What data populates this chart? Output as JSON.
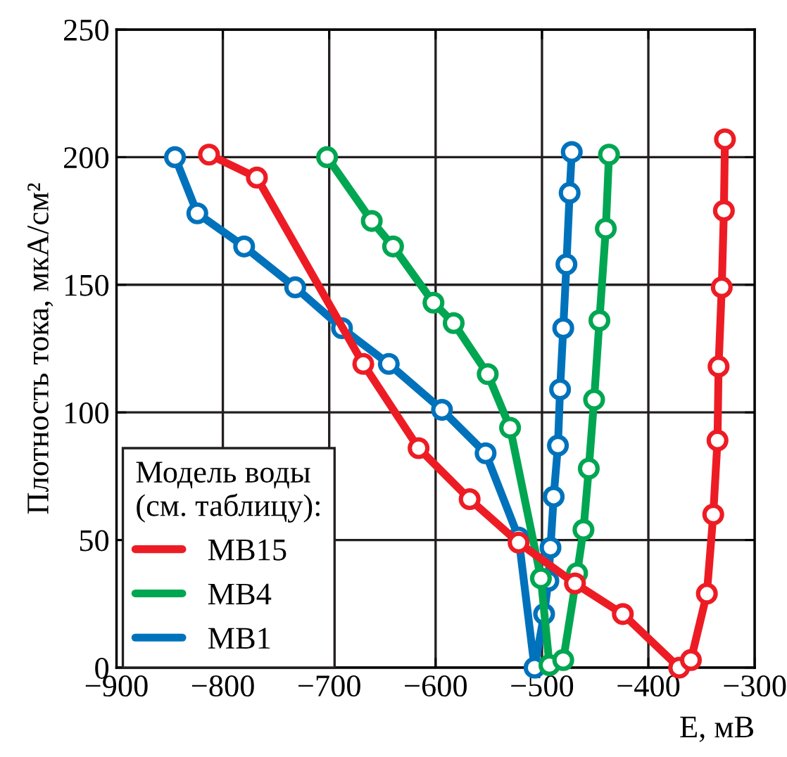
{
  "chart_data": {
    "type": "line",
    "xlabel": "E, мВ",
    "ylabel": "Плотность тока, мкА/см²",
    "legend_title": "Модель воды\n(см. таблицу):",
    "xlim": [
      -900,
      -300
    ],
    "xticks": [
      {
        "value": -900,
        "label": "−900"
      },
      {
        "value": -800,
        "label": "−800"
      },
      {
        "value": -700,
        "label": "−700"
      },
      {
        "value": -600,
        "label": "−600"
      },
      {
        "value": -500,
        "label": "−500"
      },
      {
        "value": -400,
        "label": "−400"
      },
      {
        "value": -300,
        "label": "−300"
      }
    ],
    "ylim": [
      0,
      250
    ],
    "yticks": [
      0,
      50,
      100,
      150,
      200,
      250
    ],
    "grid": true,
    "legend": "bottom left",
    "marker": "circle",
    "line_style": "solid",
    "series": [
      {
        "name": "MB15",
        "color": "#ed1c24",
        "x": [
          -813,
          -768,
          -668,
          -616,
          -568,
          -522,
          -469,
          -424,
          -371,
          -360,
          -345,
          -339,
          -335,
          -334,
          -331,
          -329,
          -328
        ],
        "values": [
          201,
          192,
          119,
          86,
          66,
          49,
          33,
          21,
          0,
          3,
          29,
          60,
          89,
          118,
          149,
          179,
          207
        ]
      },
      {
        "name": "MB4",
        "color": "#00a651",
        "x": [
          -702,
          -660,
          -640,
          -602,
          -583,
          -551,
          -530,
          -501,
          -493,
          -480,
          -467,
          -461,
          -456,
          -451,
          -446,
          -440,
          -437
        ],
        "values": [
          200,
          175,
          165,
          143,
          135,
          115,
          94,
          35,
          1,
          3,
          37,
          54,
          78,
          105,
          136,
          172,
          201
        ]
      },
      {
        "name": "MB1",
        "color": "#0072bc",
        "x": [
          -845,
          -824,
          -780,
          -732,
          -688,
          -644,
          -594,
          -553,
          -522,
          -507,
          -498,
          -494,
          -492,
          -489,
          -485,
          -483,
          -480,
          -477,
          -474,
          -472
        ],
        "values": [
          200,
          178,
          165,
          149,
          133,
          119,
          101,
          84,
          51,
          0,
          21,
          34,
          47,
          67,
          87,
          109,
          133,
          158,
          186,
          202
        ]
      }
    ]
  }
}
